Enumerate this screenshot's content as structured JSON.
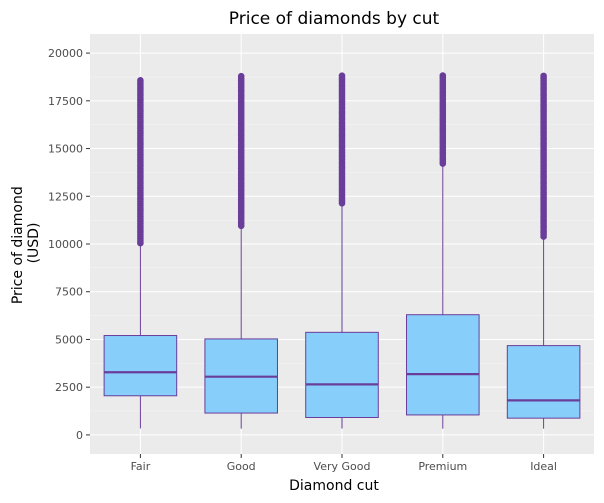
{
  "chart_data": {
    "type": "box",
    "title": "Price of diamonds by cut",
    "xlabel": "Diamond cut",
    "ylabel_lines": [
      "Price of diamond",
      "(USD)"
    ],
    "ylim": [
      -1000,
      21000
    ],
    "yticks": [
      0,
      2500,
      5000,
      7500,
      10000,
      12500,
      15000,
      17500,
      20000
    ],
    "ytick_labels": [
      "0",
      "2500",
      "5000",
      "7500",
      "10000",
      "12500",
      "15000",
      "17500",
      "20000"
    ],
    "categories": [
      "Fair",
      "Good",
      "Very Good",
      "Premium",
      "Ideal"
    ],
    "boxes": [
      {
        "category": "Fair",
        "whisker_low": 337,
        "q1": 2050,
        "median": 3282,
        "q3": 5206,
        "whisker_high": 9950,
        "outliers_low": 10000,
        "outliers_high": 18574
      },
      {
        "category": "Good",
        "whisker_low": 327,
        "q1": 1145,
        "median": 3050,
        "q3": 5028,
        "whisker_high": 10850,
        "outliers_low": 10900,
        "outliers_high": 18788
      },
      {
        "category": "Very Good",
        "whisker_low": 336,
        "q1": 912,
        "median": 2648,
        "q3": 5373,
        "whisker_high": 12050,
        "outliers_low": 12100,
        "outliers_high": 18818
      },
      {
        "category": "Premium",
        "whisker_low": 326,
        "q1": 1046,
        "median": 3185,
        "q3": 6296,
        "whisker_high": 14100,
        "outliers_low": 14150,
        "outliers_high": 18823
      },
      {
        "category": "Ideal",
        "whisker_low": 326,
        "q1": 878,
        "median": 1810,
        "q3": 4678,
        "whisker_high": 10300,
        "outliers_low": 10350,
        "outliers_high": 18806
      }
    ],
    "grid": true,
    "legend": "none",
    "colors": {
      "panel_bg": "#ebebeb",
      "grid_major": "#ffffff",
      "box_fill": "#87cefa",
      "box_line": "#6a3d9a",
      "outlier": "#6a3d9a",
      "tick_text": "#4d4d4d",
      "tick_mark": "#333333"
    }
  }
}
